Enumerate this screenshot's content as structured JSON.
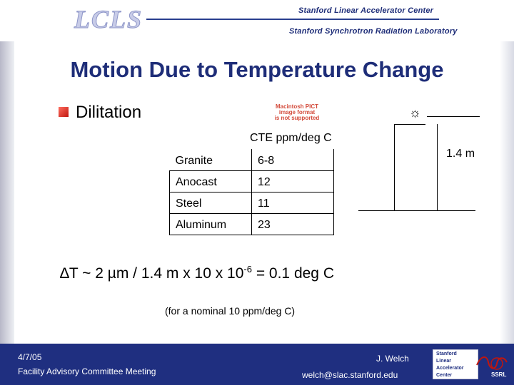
{
  "header": {
    "logo_text": "LCLS",
    "institution_line1": "Stanford Linear Accelerator Center",
    "institution_line2": "Stanford Synchrotron Radiation Laboratory"
  },
  "title": "Motion Due to Temperature Change",
  "bullet": "Dilitation",
  "pict_placeholder": [
    "Macintosh PICT",
    "image format",
    "is not supported"
  ],
  "cte_table": {
    "header": "CTE ppm/deg C",
    "rows": [
      {
        "material": "Granite",
        "value": "6-8"
      },
      {
        "material": "Anocast",
        "value": "12"
      },
      {
        "material": "Steel",
        "value": "11"
      },
      {
        "material": "Aluminum",
        "value": "23"
      }
    ]
  },
  "diagram": {
    "height_label": "1.4 m",
    "sun_icon": "sun-icon"
  },
  "formula": {
    "prefix": "∆T ~ 2 µm / 1.4 m x 10 x 10",
    "exponent": "-6",
    "suffix": " = 0.1 deg C"
  },
  "note": "(for a nominal 10 ppm/deg C)",
  "footer": {
    "date": "4/7/05",
    "meeting": "Facility Advisory Committee Meeting",
    "author": "J. Welch",
    "email": "welch@slac.stanford.edu",
    "slac_logo_lines": [
      "Stanford",
      "Linear",
      "Accelerator",
      "Center"
    ],
    "ssrl_text": "SSRL"
  },
  "colors": {
    "title": "#1e2d78",
    "footer_bg": "#1f2f80",
    "bullet": "#c0160e"
  }
}
